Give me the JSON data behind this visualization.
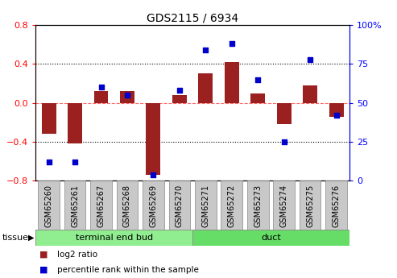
{
  "title": "GDS2115 / 6934",
  "samples": [
    "GSM65260",
    "GSM65261",
    "GSM65267",
    "GSM65268",
    "GSM65269",
    "GSM65270",
    "GSM65271",
    "GSM65272",
    "GSM65273",
    "GSM65274",
    "GSM65275",
    "GSM65276"
  ],
  "log2_ratio": [
    -0.32,
    -0.42,
    0.12,
    0.12,
    -0.74,
    0.08,
    0.3,
    0.42,
    0.1,
    -0.22,
    0.18,
    -0.14
  ],
  "percentile_rank": [
    12,
    12,
    60,
    55,
    4,
    58,
    84,
    88,
    65,
    25,
    78,
    42
  ],
  "bar_color": "#9B2020",
  "dot_color": "#0000CC",
  "left_ylim": [
    -0.8,
    0.8
  ],
  "right_ylim": [
    0,
    100
  ],
  "left_yticks": [
    -0.8,
    -0.4,
    0.0,
    0.4,
    0.8
  ],
  "right_yticks": [
    0,
    25,
    50,
    75,
    100
  ],
  "right_yticklabels": [
    "0",
    "25",
    "50",
    "75",
    "100%"
  ],
  "groups": [
    {
      "label": "terminal end bud",
      "start": 0,
      "end": 6,
      "color": "#90EE90"
    },
    {
      "label": "duct",
      "start": 6,
      "end": 12,
      "color": "#66DD66"
    }
  ],
  "tissue_label": "tissue",
  "legend_entries": [
    {
      "label": "log2 ratio",
      "color": "#9B2020"
    },
    {
      "label": "percentile rank within the sample",
      "color": "#0000CC"
    }
  ],
  "zero_line_color": "#FF6666",
  "bar_width": 0.55,
  "sample_box_color": "#C8C8C8",
  "title_fontsize": 10,
  "tick_fontsize": 7,
  "legend_fontsize": 8
}
